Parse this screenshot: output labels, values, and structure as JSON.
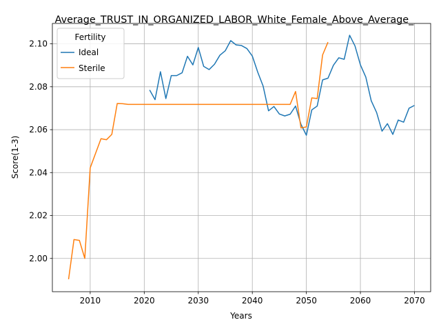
{
  "chart_data": {
    "type": "line",
    "title": "Average_TRUST_IN_ORGANIZED_LABOR_White_Female_Above_Average_",
    "xlabel": "Years",
    "ylabel": "Score(1-3)",
    "xlim": [
      2003,
      2073
    ],
    "ylim": [
      1.9845,
      2.1095
    ],
    "xticks": [
      2010,
      2020,
      2030,
      2040,
      2050,
      2060,
      2070
    ],
    "yticks": [
      2.0,
      2.02,
      2.04,
      2.06,
      2.08,
      2.1
    ],
    "xtick_labels": [
      "2010",
      "2020",
      "2030",
      "2040",
      "2050",
      "2060",
      "2070"
    ],
    "ytick_labels": [
      "2.00",
      "2.02",
      "2.04",
      "2.06",
      "2.08",
      "2.10"
    ],
    "grid": true,
    "legend": {
      "title": "Fertility",
      "placement": "top-left"
    },
    "series": [
      {
        "name": "Ideal",
        "color": "#1f77b4",
        "x": [
          2021,
          2022,
          2023,
          2024,
          2025,
          2026,
          2027,
          2028,
          2029,
          2030,
          2031,
          2032,
          2033,
          2034,
          2035,
          2036,
          2037,
          2038,
          2039,
          2040,
          2041,
          2042,
          2043,
          2044,
          2045,
          2046,
          2047,
          2048,
          2049,
          2050,
          2051,
          2052,
          2053,
          2054,
          2055,
          2056,
          2057,
          2058,
          2059,
          2060,
          2061,
          2062,
          2063,
          2064,
          2065,
          2066,
          2067,
          2068,
          2069,
          2070
        ],
        "y": [
          2.0785,
          2.074,
          2.087,
          2.0745,
          2.0852,
          2.0852,
          2.0865,
          2.0942,
          2.0902,
          2.0983,
          2.0895,
          2.088,
          2.0905,
          2.0947,
          2.0968,
          2.1015,
          2.0995,
          2.0992,
          2.0978,
          2.0943,
          2.0868,
          2.0803,
          2.0688,
          2.0708,
          2.0673,
          2.0664,
          2.0672,
          2.071,
          2.0625,
          2.0574,
          2.0692,
          2.071,
          2.0832,
          2.084,
          2.09,
          2.0935,
          2.0928,
          2.104,
          2.099,
          2.0902,
          2.0845,
          2.0735,
          2.068,
          2.0593,
          2.0628,
          2.0578,
          2.0645,
          2.0635,
          2.07,
          2.0713
        ]
      },
      {
        "name": "Sterile",
        "color": "#ff7f0e",
        "x": [
          2006,
          2007,
          2008,
          2009,
          2010,
          2011,
          2012,
          2013,
          2014,
          2015,
          2016,
          2017,
          2018,
          2019,
          2020,
          2021,
          2022,
          2023,
          2024,
          2025,
          2026,
          2027,
          2028,
          2029,
          2030,
          2031,
          2032,
          2033,
          2034,
          2035,
          2036,
          2037,
          2038,
          2039,
          2040,
          2041,
          2042,
          2043,
          2044,
          2045,
          2046,
          2047,
          2048,
          2049,
          2050,
          2051,
          2052,
          2053,
          2054
        ],
        "y": [
          1.9903,
          2.0088,
          2.0084,
          2.0,
          2.0422,
          2.049,
          2.0558,
          2.0553,
          2.0578,
          2.0722,
          2.0721,
          2.0718,
          2.0718,
          2.0718,
          2.0718,
          2.0718,
          2.0718,
          2.0718,
          2.0718,
          2.0718,
          2.0718,
          2.0718,
          2.0718,
          2.0718,
          2.0718,
          2.0718,
          2.0718,
          2.0718,
          2.0718,
          2.0718,
          2.0718,
          2.0718,
          2.0718,
          2.0718,
          2.0718,
          2.0718,
          2.0718,
          2.0718,
          2.0718,
          2.0718,
          2.0718,
          2.0718,
          2.0778,
          2.0608,
          2.0613,
          2.0748,
          2.0745,
          2.0948,
          2.1008
        ]
      }
    ]
  }
}
